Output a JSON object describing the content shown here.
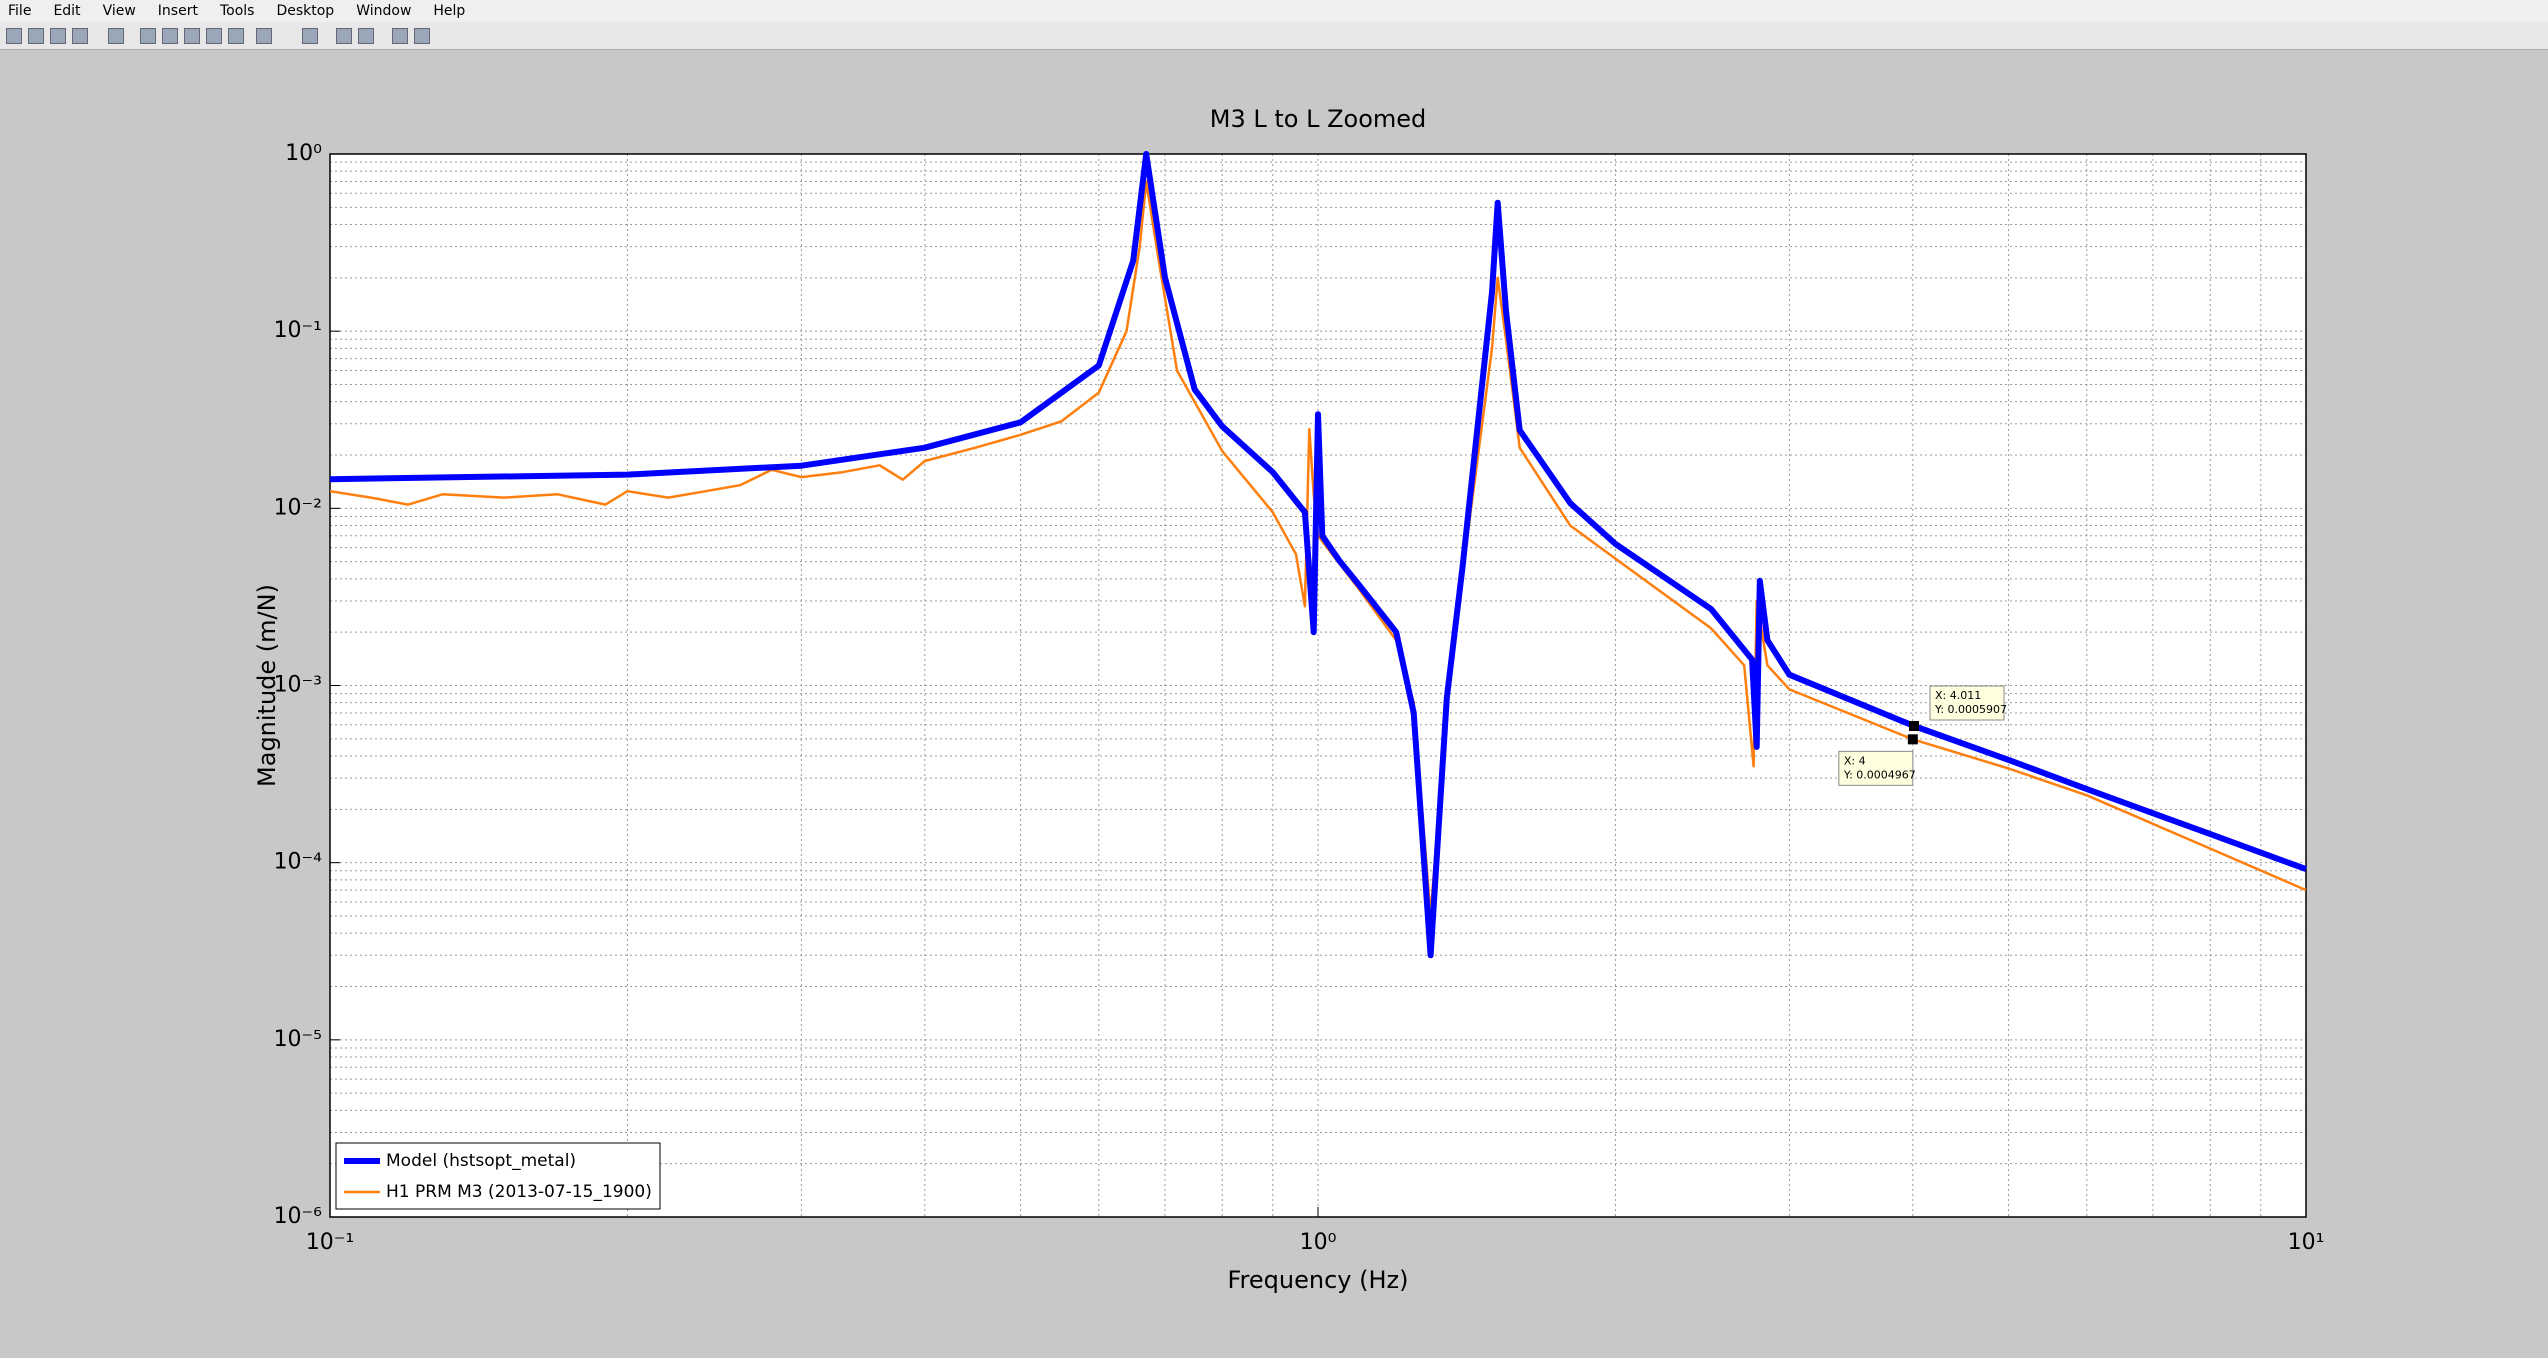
{
  "menu": [
    "File",
    "Edit",
    "View",
    "Insert",
    "Tools",
    "Desktop",
    "Window",
    "Help"
  ],
  "chart_data": {
    "type": "line",
    "title": "M3 L to L Zoomed",
    "x_label": "Frequency (Hz)",
    "y_label": "Magnitude (m/N)",
    "xscale": "log",
    "yscale": "log",
    "grid": true,
    "legend": "lower left",
    "xlim": [
      0.1,
      10
    ],
    "ylim": [
      1e-06,
      1
    ],
    "xticks": [
      {
        "value": 0.1,
        "label": "10⁻¹"
      },
      {
        "value": 1,
        "label": "10⁰"
      },
      {
        "value": 10,
        "label": "10¹"
      }
    ],
    "yticks": [
      {
        "value": 1e-06,
        "label": "10⁻⁶"
      },
      {
        "value": 1e-05,
        "label": "10⁻⁵"
      },
      {
        "value": 0.0001,
        "label": "10⁻⁴"
      },
      {
        "value": 0.001,
        "label": "10⁻³"
      },
      {
        "value": 0.01,
        "label": "10⁻²"
      },
      {
        "value": 0.1,
        "label": "10⁻¹"
      },
      {
        "value": 1,
        "label": "10⁰"
      }
    ],
    "series": [
      {
        "name": "Model (hstsopt_metal)",
        "color": "#0000ff",
        "x": [
          0.1,
          0.2,
          0.3,
          0.4,
          0.5,
          0.6,
          0.65,
          0.67,
          0.7,
          0.75,
          0.8,
          0.9,
          0.97,
          0.99,
          1.0,
          1.01,
          1.05,
          1.1,
          1.2,
          1.25,
          1.3,
          1.35,
          1.4,
          1.5,
          1.52,
          1.55,
          1.6,
          1.8,
          2.0,
          2.5,
          2.75,
          2.78,
          2.8,
          2.85,
          3.0,
          4.011,
          5,
          6,
          8,
          10
        ],
        "values": [
          0.0146,
          0.0155,
          0.0174,
          0.022,
          0.0306,
          0.064,
          0.25,
          1.0,
          0.2,
          0.047,
          0.029,
          0.016,
          0.0095,
          0.002,
          0.034,
          0.007,
          0.0051,
          0.0037,
          0.002,
          0.0007,
          3e-05,
          0.00085,
          0.0046,
          0.166,
          0.53,
          0.13,
          0.0276,
          0.0107,
          0.0063,
          0.0027,
          0.0014,
          0.00045,
          0.0039,
          0.0018,
          0.00115,
          0.0005907,
          0.00038,
          0.00026,
          0.000145,
          9.2e-05
        ]
      },
      {
        "name": "H1 PRM  M3 (2013-07-15_1900)",
        "color": "#ff7f0e",
        "x": [
          0.1,
          0.11,
          0.12,
          0.13,
          0.15,
          0.17,
          0.19,
          0.2,
          0.22,
          0.24,
          0.26,
          0.28,
          0.3,
          0.33,
          0.36,
          0.38,
          0.4,
          0.45,
          0.5,
          0.55,
          0.6,
          0.64,
          0.66,
          0.67,
          0.69,
          0.72,
          0.8,
          0.9,
          0.95,
          0.97,
          0.98,
          0.99,
          1.0,
          1.1,
          1.2,
          1.25,
          1.3,
          1.35,
          1.4,
          1.5,
          1.52,
          1.55,
          1.6,
          1.8,
          2.0,
          2.5,
          2.7,
          2.76,
          2.78,
          2.85,
          3.0,
          4,
          5,
          6,
          8,
          10
        ],
        "values": [
          0.0125,
          0.0115,
          0.0105,
          0.012,
          0.0115,
          0.012,
          0.0105,
          0.0125,
          0.0115,
          0.0125,
          0.0135,
          0.0165,
          0.015,
          0.016,
          0.0175,
          0.0145,
          0.0185,
          0.022,
          0.026,
          0.031,
          0.045,
          0.1,
          0.3,
          0.7,
          0.25,
          0.06,
          0.021,
          0.0095,
          0.0055,
          0.0028,
          0.028,
          0.012,
          0.007,
          0.0035,
          0.0018,
          0.0008,
          5e-05,
          0.0008,
          0.0042,
          0.08,
          0.2,
          0.09,
          0.022,
          0.008,
          0.0052,
          0.0021,
          0.0013,
          0.00035,
          0.003,
          0.0013,
          0.00095,
          0.0004967,
          0.00034,
          0.00024,
          0.00012,
          7e-05
        ]
      }
    ],
    "datatips": [
      {
        "x": 4.011,
        "y": 0.0005907,
        "x_label": "X: 4.011",
        "y_label": "Y: 0.0005907"
      },
      {
        "x": 4,
        "y": 0.0004967,
        "x_label": "X: 4",
        "y_label": "Y: 0.0004967"
      }
    ]
  }
}
